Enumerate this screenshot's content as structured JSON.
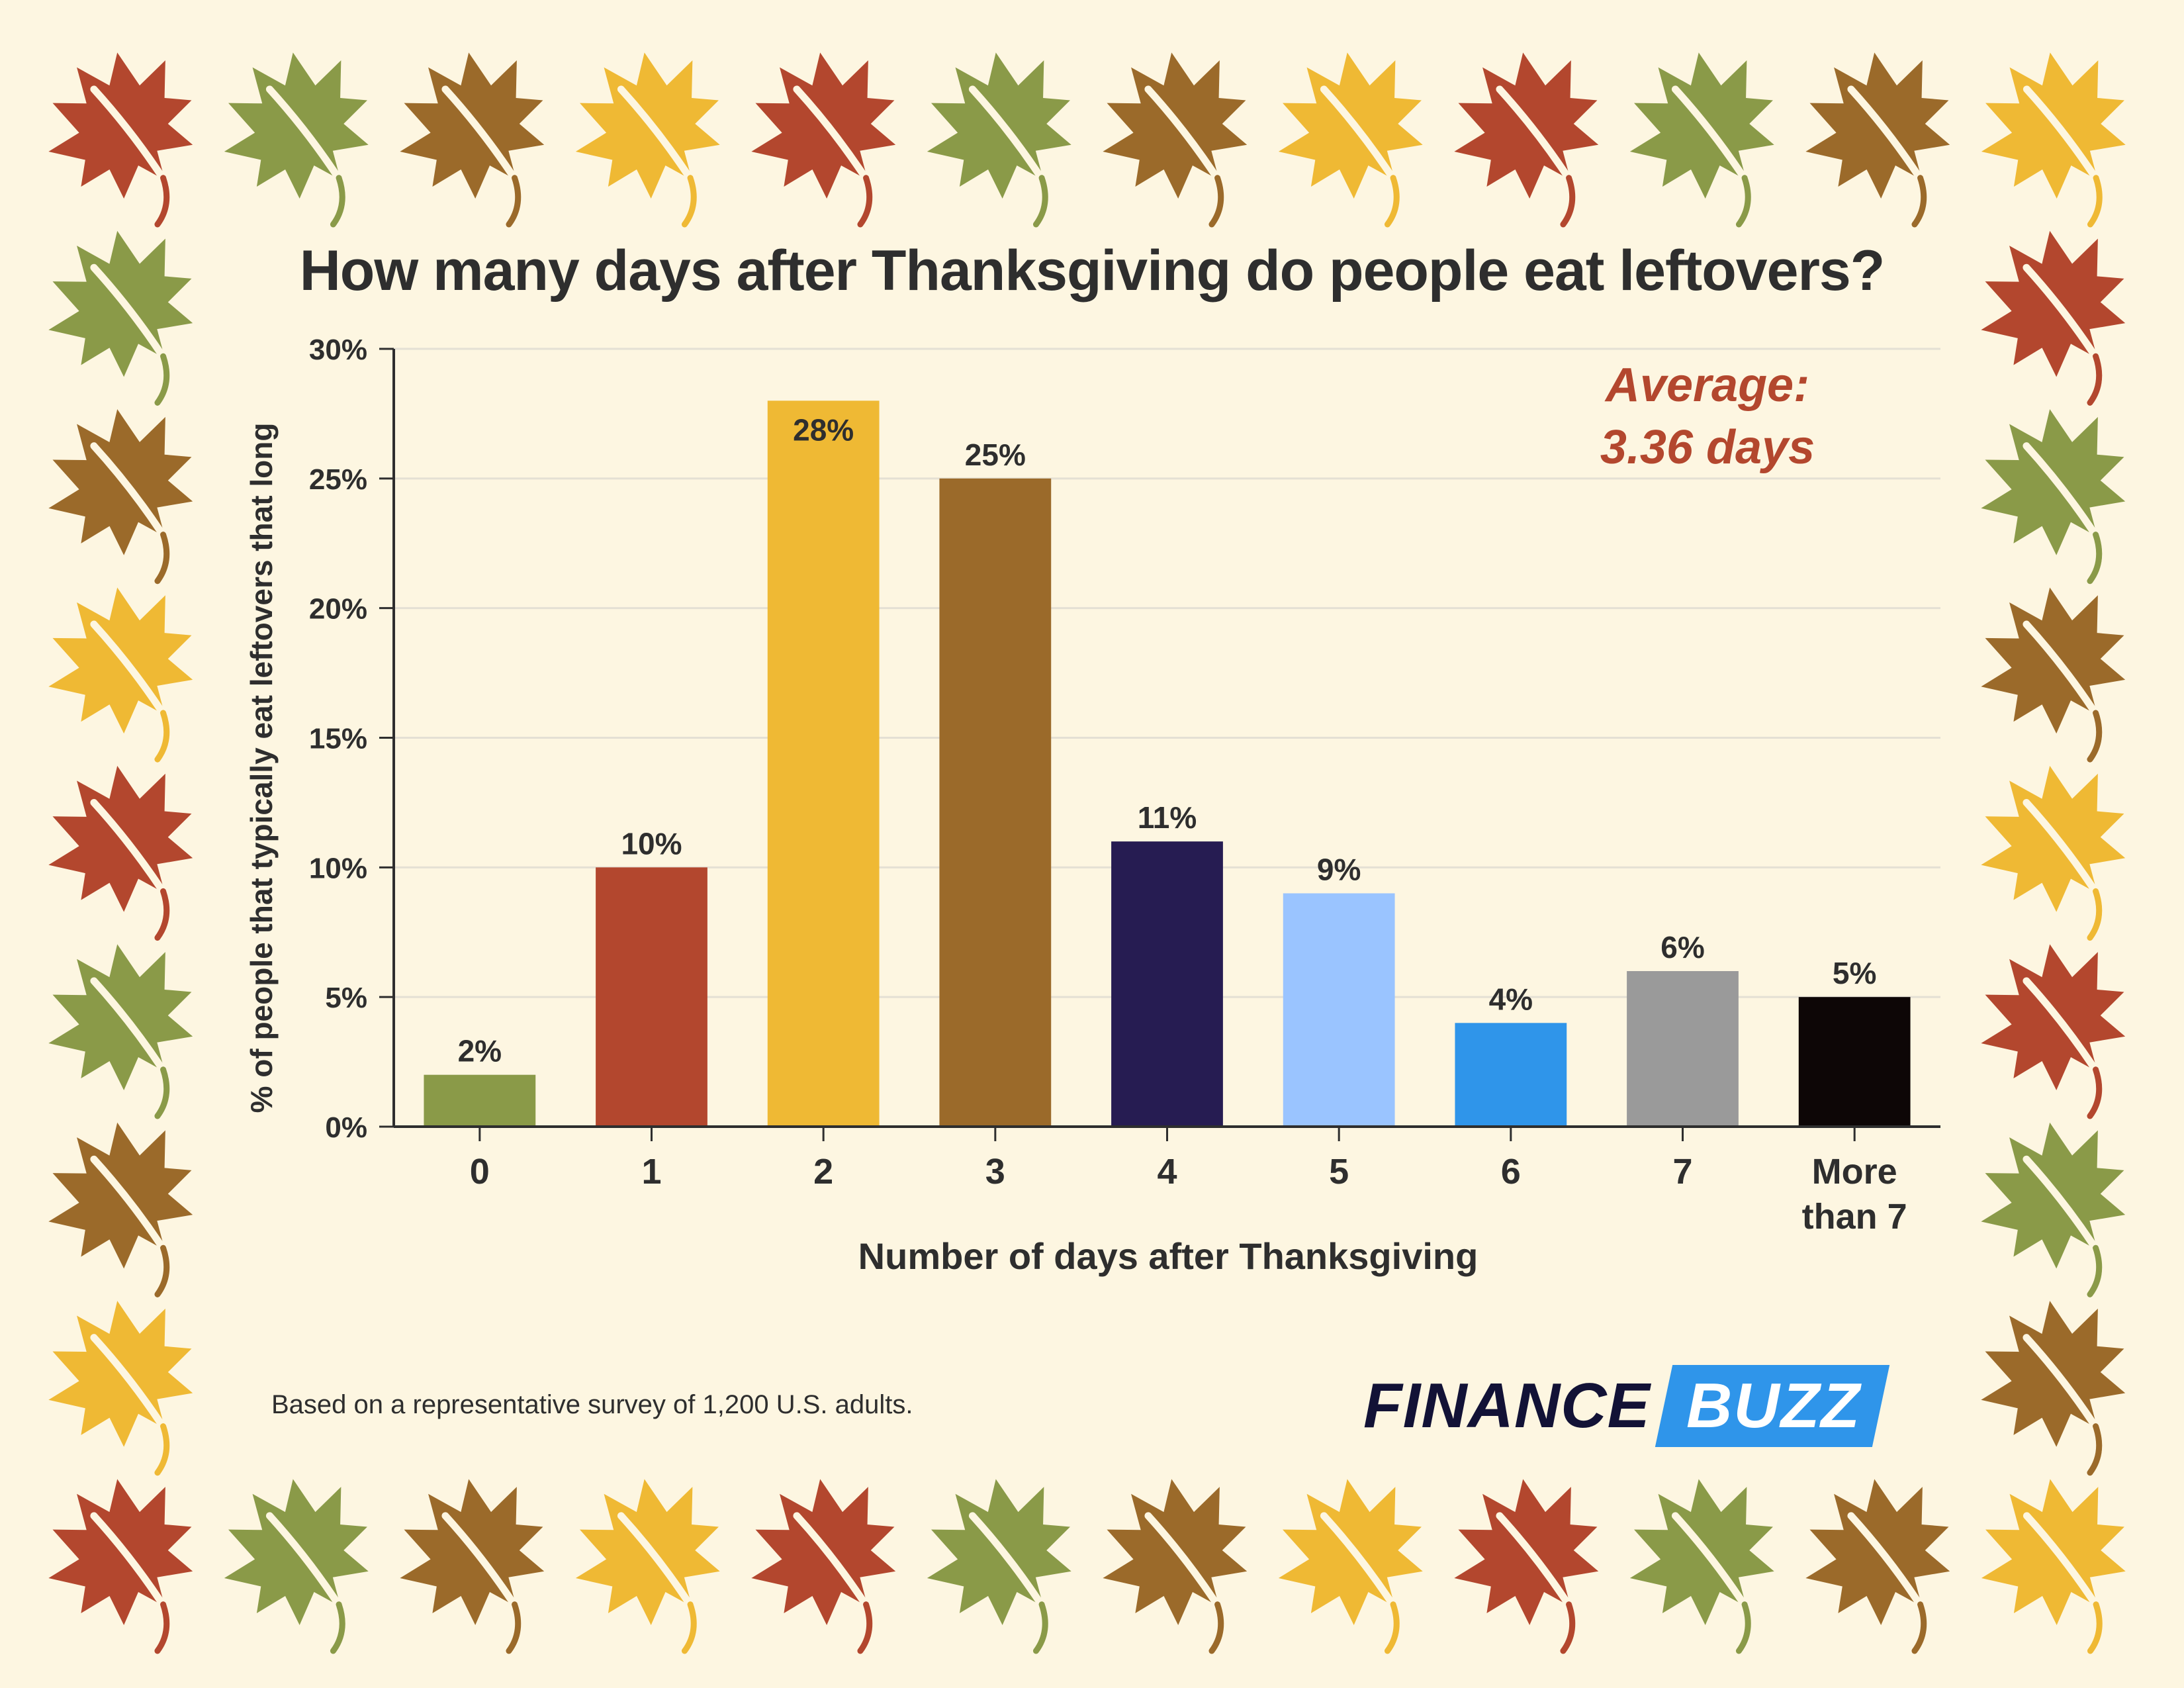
{
  "border": {
    "colors": [
      "#9b6a2a",
      "#efb934",
      "#b3472e",
      "#8a9a48"
    ],
    "stem_color": "#fdf6e1",
    "icon": "maple-leaf-icon"
  },
  "chart_data": {
    "type": "bar",
    "title": "How many days after Thanksgiving do people eat leftovers?",
    "xlabel": "Number of days after Thanksgiving",
    "ylabel": "% of people that typically eat leftovers that long",
    "categories": [
      "0",
      "1",
      "2",
      "3",
      "4",
      "5",
      "6",
      "7",
      "More than 7"
    ],
    "values": [
      2,
      10,
      28,
      25,
      11,
      9,
      4,
      6,
      5
    ],
    "value_labels": [
      "2%",
      "10%",
      "28%",
      "25%",
      "11%",
      "9%",
      "4%",
      "6%",
      "5%"
    ],
    "bar_colors": [
      "#8a9a48",
      "#b3472e",
      "#efb934",
      "#9b6a2a",
      "#261c52",
      "#9ac4ff",
      "#2f95ea",
      "#9a9a9a",
      "#0d0606"
    ],
    "ylim": [
      0,
      30
    ],
    "yticks": [
      0,
      5,
      10,
      15,
      20,
      25,
      30
    ],
    "ytick_labels": [
      "0%",
      "5%",
      "10%",
      "15%",
      "20%",
      "25%",
      "30%"
    ],
    "grid": true,
    "annotation": {
      "line1": "Average:",
      "line2": "3.36 days",
      "color": "#b3472e"
    }
  },
  "footnote": "Based on a representative survey of 1,200 U.S. adults.",
  "logo": {
    "part1": "FINANCE",
    "part2": "BUZZ"
  }
}
